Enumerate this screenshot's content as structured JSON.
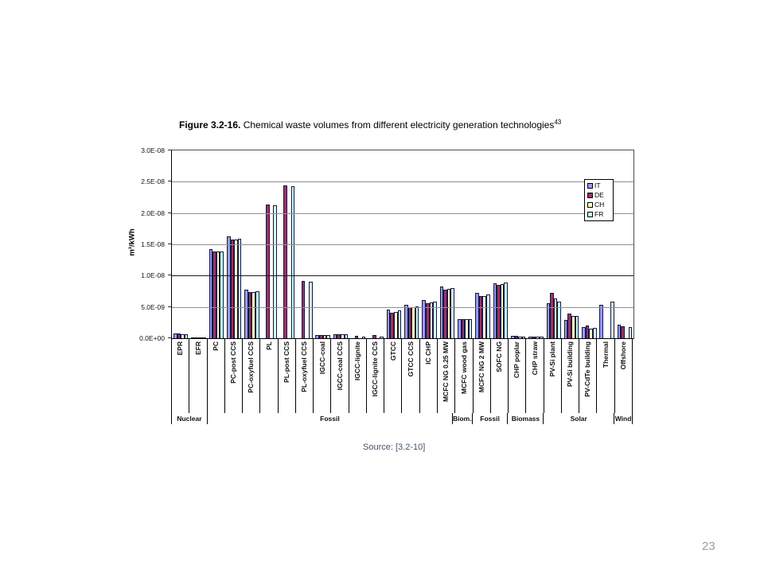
{
  "page": {
    "number": "23"
  },
  "figure": {
    "label": "Figure 3.2-16.",
    "caption": " Chemical waste volumes from different electricity generation technologies",
    "footnote_ref": "43",
    "source": "Source: [3.2-10]"
  },
  "chart_data": {
    "type": "bar",
    "title": "Chemical waste volumes from different electricity generation technologies",
    "xlabel": "",
    "ylabel": "m³/kWh",
    "ylim": [
      0,
      3e-08
    ],
    "y_ticks": [
      "3.0E-08",
      "2.5E-08",
      "2.0E-08",
      "1.5E-08",
      "1.0E-08",
      "5.0E-09",
      "0.0E+00"
    ],
    "grid": true,
    "legend_position": "top-right",
    "categories": [
      "EPR",
      "EFR",
      "PC",
      "PC-post CCS",
      "PC-oxyfuel CCS",
      "PL",
      "PL-post CCS",
      "PL-oxyfuel CCS",
      "IGCC-coal",
      "IGCC-coal CCS",
      "IGCC-lignite",
      "IGCC-lignite CCS",
      "GTCC",
      "GTCC CCS",
      "IC CHP",
      "MCFC NG 0.25 MW",
      "MCFC wood gas",
      "MCFC NG 2 MW",
      "SOFC NG",
      "CHP poplar",
      "CHP straw",
      "PV-Si plant",
      "PV-Si building",
      "PV-CdTe building",
      "Thermal",
      "Offshore"
    ],
    "groups": [
      {
        "label": "Nuclear",
        "span": 2
      },
      {
        "label": "Fossil",
        "span": 14
      },
      {
        "label": "Biom.",
        "span": 1
      },
      {
        "label": "Fossil",
        "span": 2
      },
      {
        "label": "Biomass",
        "span": 2
      },
      {
        "label": "Solar",
        "span": 4
      },
      {
        "label": "Wind",
        "span": 1
      }
    ],
    "series": [
      {
        "name": "IT",
        "color": "#9999FF",
        "values": [
          7e-10,
          1.5e-10,
          1.42e-08,
          1.63e-08,
          7.7e-09,
          null,
          null,
          null,
          5e-10,
          6.5e-10,
          null,
          null,
          4.6e-09,
          5.3e-09,
          6.1e-09,
          8.2e-09,
          3.1e-09,
          7.2e-09,
          8.8e-09,
          3.5e-10,
          2.5e-10,
          5.6e-09,
          2.9e-09,
          1.8e-09,
          5.4e-09,
          2.1e-09
        ]
      },
      {
        "name": "DE",
        "color": "#993366",
        "values": [
          7e-10,
          1.5e-10,
          1.38e-08,
          1.58e-08,
          7.4e-09,
          2.13e-08,
          2.44e-08,
          9.1e-09,
          5e-10,
          6.5e-10,
          3.5e-10,
          4.5e-10,
          4.1e-09,
          4.9e-09,
          5.6e-09,
          7.8e-09,
          3.1e-09,
          6.7e-09,
          8.5e-09,
          3.5e-10,
          3e-10,
          7.2e-09,
          4e-09,
          2e-09,
          null,
          1.9e-09
        ]
      },
      {
        "name": "CH",
        "color": "#FFFFCC",
        "values": [
          6.5e-10,
          1.5e-10,
          1.38e-08,
          1.58e-08,
          7.4e-09,
          null,
          null,
          null,
          4.5e-10,
          6e-10,
          null,
          null,
          4.2e-09,
          5e-09,
          5.7e-09,
          7.9e-09,
          3.1e-09,
          6.8e-09,
          8.6e-09,
          3e-10,
          2e-10,
          6.4e-09,
          3.6e-09,
          1.5e-09,
          null,
          null
        ]
      },
      {
        "name": "FR",
        "color": "#CCFFFF",
        "values": [
          6.5e-10,
          1.5e-10,
          1.38e-08,
          1.59e-08,
          7.5e-09,
          2.12e-08,
          2.43e-08,
          9e-09,
          4.5e-10,
          6e-10,
          2e-10,
          3e-10,
          4.4e-09,
          5.1e-09,
          5.9e-09,
          8e-09,
          3.1e-09,
          7e-09,
          8.9e-09,
          3e-10,
          2.5e-10,
          5.9e-09,
          3.5e-09,
          1.6e-09,
          5.8e-09,
          1.8e-09
        ]
      }
    ]
  }
}
